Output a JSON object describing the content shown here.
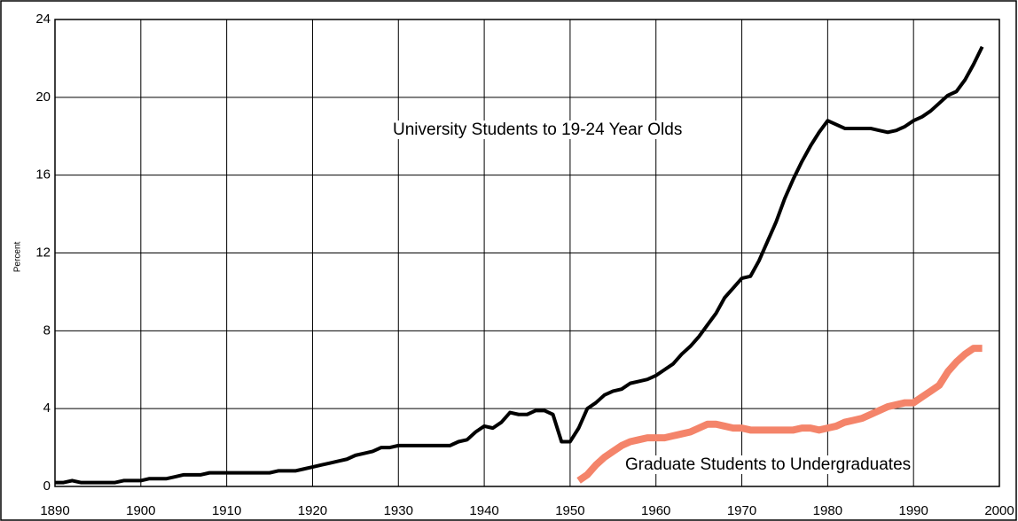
{
  "chart_data": {
    "type": "line",
    "y_label": "Percent",
    "xlim": [
      1890,
      2000
    ],
    "xticks": [
      1890,
      1900,
      1910,
      1920,
      1930,
      1940,
      1950,
      1960,
      1970,
      1980,
      1990,
      2000
    ],
    "ylim": [
      0,
      24
    ],
    "yticks": [
      0,
      4,
      8,
      12,
      16,
      20,
      24
    ],
    "grid": true,
    "annotations": [
      {
        "text": "University Students to 19-24 Year Olds"
      },
      {
        "text": "Graduate Students to Undergraduates"
      }
    ],
    "series": [
      {
        "color": "#000000",
        "x": [
          1890,
          1891,
          1892,
          1893,
          1894,
          1895,
          1896,
          1897,
          1898,
          1899,
          1900,
          1901,
          1902,
          1903,
          1904,
          1905,
          1906,
          1907,
          1908,
          1909,
          1910,
          1911,
          1912,
          1913,
          1914,
          1915,
          1916,
          1917,
          1918,
          1919,
          1920,
          1921,
          1922,
          1923,
          1924,
          1925,
          1926,
          1927,
          1928,
          1929,
          1930,
          1931,
          1932,
          1933,
          1934,
          1935,
          1936,
          1937,
          1938,
          1939,
          1940,
          1941,
          1942,
          1943,
          1944,
          1945,
          1946,
          1947,
          1948,
          1949,
          1950,
          1951,
          1952,
          1953,
          1954,
          1955,
          1956,
          1957,
          1958,
          1959,
          1960,
          1961,
          1962,
          1963,
          1964,
          1965,
          1966,
          1967,
          1968,
          1969,
          1970,
          1971,
          1972,
          1973,
          1974,
          1975,
          1976,
          1977,
          1978,
          1979,
          1980,
          1981,
          1982,
          1983,
          1984,
          1985,
          1986,
          1987,
          1988,
          1989,
          1990,
          1991,
          1992,
          1993,
          1994,
          1995,
          1996,
          1997,
          1998
        ],
        "values": [
          0.2,
          0.2,
          0.3,
          0.2,
          0.2,
          0.2,
          0.2,
          0.2,
          0.3,
          0.3,
          0.3,
          0.4,
          0.4,
          0.4,
          0.5,
          0.6,
          0.6,
          0.6,
          0.7,
          0.7,
          0.7,
          0.7,
          0.7,
          0.7,
          0.7,
          0.7,
          0.8,
          0.8,
          0.8,
          0.9,
          1.0,
          1.1,
          1.2,
          1.3,
          1.4,
          1.6,
          1.7,
          1.8,
          2.0,
          2.0,
          2.1,
          2.1,
          2.1,
          2.1,
          2.1,
          2.1,
          2.1,
          2.3,
          2.4,
          2.8,
          3.1,
          3.0,
          3.3,
          3.8,
          3.7,
          3.7,
          3.9,
          3.9,
          3.7,
          2.3,
          2.3,
          3.0,
          4.0,
          4.3,
          4.7,
          4.9,
          5.0,
          5.3,
          5.4,
          5.5,
          5.7,
          6.0,
          6.3,
          6.8,
          7.2,
          7.7,
          8.3,
          8.9,
          9.7,
          10.2,
          10.7,
          10.8,
          11.6,
          12.6,
          13.6,
          14.8,
          15.8,
          16.7,
          17.5,
          18.2,
          18.8,
          18.6,
          18.4,
          18.4,
          18.4,
          18.4,
          18.3,
          18.2,
          18.3,
          18.5,
          18.8,
          19.0,
          19.3,
          19.7,
          20.1,
          20.3,
          20.9,
          21.7,
          22.6
        ]
      },
      {
        "color": "#f4846a",
        "x": [
          1951,
          1952,
          1953,
          1954,
          1955,
          1956,
          1957,
          1958,
          1959,
          1960,
          1961,
          1962,
          1963,
          1964,
          1965,
          1966,
          1967,
          1968,
          1969,
          1970,
          1971,
          1972,
          1973,
          1974,
          1975,
          1976,
          1977,
          1978,
          1979,
          1980,
          1981,
          1982,
          1983,
          1984,
          1985,
          1986,
          1987,
          1988,
          1989,
          1990,
          1991,
          1992,
          1993,
          1994,
          1995,
          1996,
          1997,
          1998
        ],
        "values": [
          0.3,
          0.6,
          1.1,
          1.5,
          1.8,
          2.1,
          2.3,
          2.4,
          2.5,
          2.5,
          2.5,
          2.6,
          2.7,
          2.8,
          3.0,
          3.2,
          3.2,
          3.1,
          3.0,
          3.0,
          2.9,
          2.9,
          2.9,
          2.9,
          2.9,
          2.9,
          3.0,
          3.0,
          2.9,
          3.0,
          3.1,
          3.3,
          3.4,
          3.5,
          3.7,
          3.9,
          4.1,
          4.2,
          4.3,
          4.3,
          4.6,
          4.9,
          5.2,
          5.9,
          6.4,
          6.8,
          7.1,
          7.1
        ]
      }
    ]
  }
}
